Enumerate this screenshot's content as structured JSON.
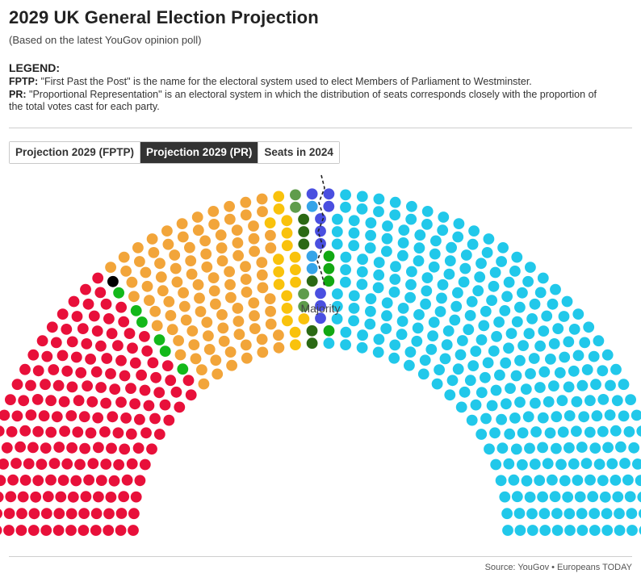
{
  "header": {
    "title": "2029 UK General Election Projection",
    "subtitle": "(Based on the latest YouGov opinion poll)"
  },
  "legend": {
    "heading": "LEGEND:",
    "fptp_term": "FPTP:",
    "fptp_text": " \"First Past the Post\" is the name for the electoral system used to elect Members of Parliament to Westminster.",
    "pr_term": "PR:",
    "pr_text": " \"Proportional Representation\" is an electoral system in which the distribution of seats corresponds closely with the proportion of the total votes cast for each party."
  },
  "tabs": [
    {
      "label": "Projection 2029 (FPTP)",
      "active": false
    },
    {
      "label": "Projection 2029 (PR)",
      "active": true
    },
    {
      "label": "Seats in 2024",
      "active": false
    }
  ],
  "footer": {
    "source": "Source: YouGov • Europeans TODAY"
  },
  "chart_data": {
    "type": "parliament",
    "total_seats": 650,
    "majority_seats": 326,
    "majority_label": "Majority",
    "series": [
      {
        "color": "#e8103a",
        "seats": 179
      },
      {
        "color": "#13b81a",
        "seats": 6
      },
      {
        "color": "#000000",
        "seats": 1
      },
      {
        "color": "#f2a53a",
        "seats": 104
      },
      {
        "color": "#f9c20c",
        "seats": 18
      },
      {
        "color": "#5f9c4b",
        "seats": 4
      },
      {
        "color": "#2b6914",
        "seats": 6
      },
      {
        "color": "#35a4e8",
        "seats": 3
      },
      {
        "color": "#4a4fe0",
        "seats": 9
      },
      {
        "color": "#12a812",
        "seats": 4
      },
      {
        "color": "#21c8ea",
        "seats": 316
      }
    ]
  }
}
